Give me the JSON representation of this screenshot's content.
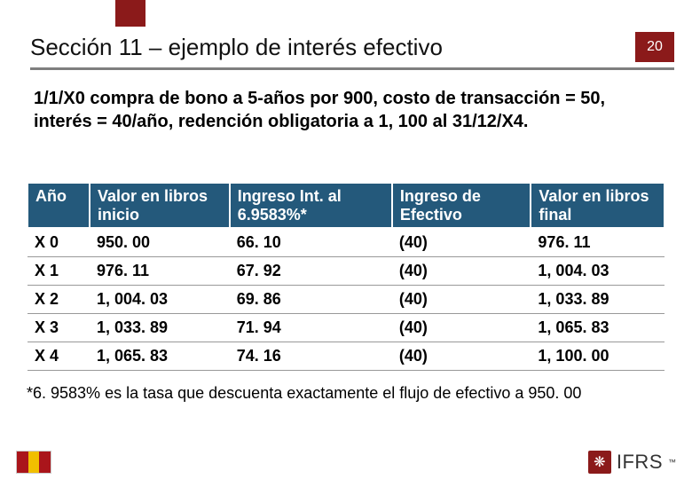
{
  "page_number": "20",
  "title": "Sección 11 – ejemplo de interés efectivo",
  "intro": "1/1/X0 compra de bono a 5-años por 900, costo de transacción = 50, interés = 40/año, redención obligatoria a 1, 100 al 31/12/X4.",
  "table": {
    "columns": [
      "Año",
      "Valor en libros inicio",
      "Ingreso Int. al 6.9583%*",
      "Ingreso de Efectivo",
      "Valor en libros final"
    ],
    "rows": [
      [
        "X 0",
        "950. 00",
        "66. 10",
        "(40)",
        "976. 11"
      ],
      [
        "X 1",
        "976. 11",
        "67. 92",
        "(40)",
        "1, 004. 03"
      ],
      [
        "X 2",
        "1, 004. 03",
        "69. 86",
        "(40)",
        "1, 033. 89"
      ],
      [
        "X 3",
        "1, 033. 89",
        "71. 94",
        "(40)",
        "1, 065. 83"
      ],
      [
        "X 4",
        "1, 065. 83",
        "74. 16",
        "(40)",
        "1, 100. 00"
      ]
    ],
    "header_bg": "#24597b",
    "header_fg": "#ffffff",
    "row_border": "#999999",
    "fontsize": 18
  },
  "footnote": "*6. 9583% es la tasa que descuenta exactamente el flujo de efectivo a 950. 00",
  "logos": {
    "ifrs_label": "IFRS",
    "ifrs_icon_glyph": "❋"
  },
  "colors": {
    "accent": "#8b1a1a",
    "title_rule": "#7f7f7f",
    "background": "#ffffff"
  }
}
